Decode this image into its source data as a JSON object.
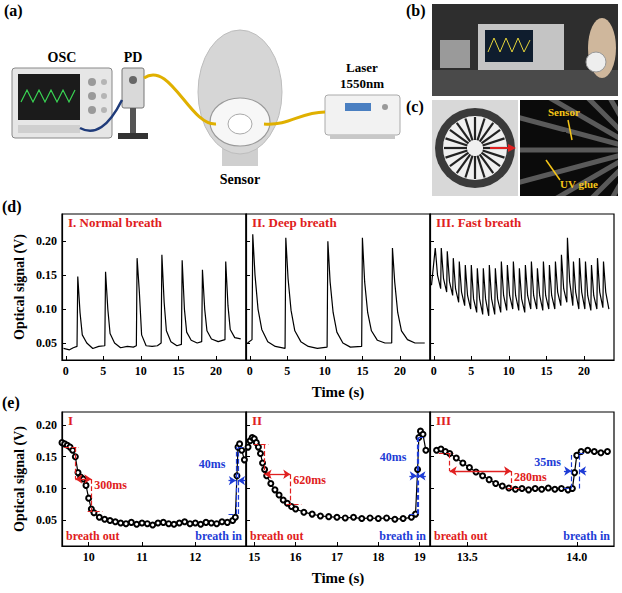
{
  "figure": {
    "a": {
      "label": "(a)",
      "osc": "OSC",
      "pd": "PD",
      "sensor": "Sensor",
      "laser": "Laser",
      "wavelength": "1550nm"
    },
    "b": {
      "label": "(b)"
    },
    "c": {
      "label": "(c)",
      "sensor": "Sensor",
      "glue": "UV glue"
    }
  },
  "chart_data": [
    {
      "type": "line",
      "panel": "(d)",
      "title": "I. Normal breath",
      "ylabel": "Optical signal (V)",
      "color": "#000000",
      "marker": "none",
      "x": [
        -0.3,
        0.5,
        1.0,
        1.5,
        1.6,
        1.9,
        2.2,
        2.8,
        3.6,
        4.4,
        5.2,
        5.3,
        5.6,
        5.9,
        6.5,
        7.3,
        8.2,
        9.0,
        9.4,
        9.5,
        9.8,
        10.1,
        10.7,
        11.5,
        12.2,
        12.7,
        12.8,
        13.1,
        13.4,
        14.0,
        14.8,
        15.4,
        15.5,
        15.8,
        16.1,
        16.7,
        17.5,
        18.1,
        18.2,
        18.5,
        18.8,
        19.4,
        20.3,
        21.2,
        21.3,
        21.6,
        21.9,
        22.5,
        23.3
      ],
      "values": [
        0.042,
        0.04,
        0.043,
        0.045,
        0.148,
        0.095,
        0.062,
        0.05,
        0.042,
        0.045,
        0.046,
        0.155,
        0.1,
        0.064,
        0.05,
        0.043,
        0.045,
        0.044,
        0.046,
        0.175,
        0.125,
        0.062,
        0.046,
        0.045,
        0.046,
        0.05,
        0.18,
        0.11,
        0.068,
        0.052,
        0.046,
        0.048,
        0.172,
        0.1,
        0.066,
        0.054,
        0.05,
        0.052,
        0.158,
        0.1,
        0.068,
        0.056,
        0.052,
        0.055,
        0.17,
        0.105,
        0.07,
        0.058,
        0.056
      ],
      "xlim": [
        -0.5,
        24
      ],
      "xticks": [
        0,
        5,
        10,
        15,
        20
      ],
      "ylim": [
        0.025,
        0.24
      ],
      "yticks": [
        0.05,
        {
          "value": 0.1,
          "label": "0.10"
        },
        0.15,
        {
          "value": 0.2,
          "label": "0.20"
        }
      ]
    },
    {
      "type": "line",
      "title": "II. Deep breath",
      "xlabel": "Time (s)",
      "tick_labels": "x",
      "color": "#000000",
      "marker": "none",
      "x": [
        -0.3,
        0.3,
        0.4,
        0.7,
        1.1,
        1.6,
        2.4,
        3.4,
        4.7,
        4.8,
        5.1,
        5.5,
        6.0,
        6.8,
        7.8,
        9.0,
        10.3,
        10.4,
        10.7,
        11.1,
        11.6,
        12.4,
        13.4,
        14.9,
        15.0,
        15.3,
        15.7,
        16.2,
        17.0,
        18.0,
        18.9,
        19.0,
        19.3,
        19.7,
        20.2,
        21.0,
        22.0,
        23.3
      ],
      "values": [
        0.05,
        0.055,
        0.21,
        0.15,
        0.1,
        0.07,
        0.052,
        0.045,
        0.042,
        0.205,
        0.145,
        0.098,
        0.068,
        0.052,
        0.045,
        0.042,
        0.044,
        0.2,
        0.14,
        0.095,
        0.066,
        0.05,
        0.044,
        0.045,
        0.205,
        0.14,
        0.095,
        0.068,
        0.054,
        0.05,
        0.05,
        0.19,
        0.14,
        0.095,
        0.068,
        0.055,
        0.05,
        0.05
      ],
      "xlim": [
        -0.5,
        24
      ],
      "xticks": [
        0,
        5,
        10,
        15,
        20
      ],
      "ylim": [
        0.025,
        0.24
      ],
      "yticks": [
        0.05,
        {
          "value": 0.1,
          "label": "0.10"
        },
        0.15,
        {
          "value": 0.2,
          "label": "0.20"
        }
      ]
    },
    {
      "type": "line",
      "title": "III. Fast breath",
      "tick_labels": "x",
      "color": "#000000",
      "marker": "none",
      "x": [
        -0.3,
        0.2,
        0.5,
        0.92,
        1.0,
        1.3,
        1.72,
        1.8,
        2.1,
        2.52,
        2.6,
        2.9,
        3.32,
        3.4,
        3.7,
        4.12,
        4.2,
        4.5,
        4.92,
        5.0,
        5.3,
        5.72,
        5.8,
        6.1,
        6.52,
        6.6,
        6.9,
        7.32,
        7.4,
        7.7,
        8.12,
        8.2,
        8.5,
        8.92,
        9.0,
        9.3,
        9.72,
        9.8,
        10.1,
        10.52,
        10.6,
        10.9,
        11.32,
        11.4,
        11.7,
        12.12,
        12.2,
        12.5,
        12.92,
        13.0,
        13.3,
        13.72,
        13.8,
        14.1,
        14.52,
        14.6,
        14.9,
        15.32,
        15.4,
        15.7,
        16.12,
        16.2,
        16.5,
        16.92,
        17.0,
        17.3,
        17.72,
        17.8,
        18.1,
        18.52,
        18.6,
        18.9,
        19.32,
        19.4,
        19.7,
        20.12,
        20.2,
        20.5,
        20.92,
        21.0,
        21.3,
        21.72,
        21.8,
        22.1,
        22.52,
        22.6,
        22.9,
        23.32
      ],
      "values": [
        0.135,
        0.19,
        0.15,
        0.13,
        0.19,
        0.145,
        0.125,
        0.185,
        0.14,
        0.12,
        0.175,
        0.13,
        0.11,
        0.17,
        0.125,
        0.105,
        0.165,
        0.12,
        0.1,
        0.165,
        0.115,
        0.095,
        0.16,
        0.115,
        0.092,
        0.16,
        0.115,
        0.09,
        0.165,
        0.115,
        0.092,
        0.16,
        0.115,
        0.095,
        0.17,
        0.12,
        0.098,
        0.165,
        0.12,
        0.1,
        0.17,
        0.12,
        0.098,
        0.16,
        0.115,
        0.095,
        0.165,
        0.12,
        0.1,
        0.17,
        0.12,
        0.1,
        0.16,
        0.12,
        0.098,
        0.17,
        0.12,
        0.1,
        0.165,
        0.12,
        0.1,
        0.17,
        0.125,
        0.105,
        0.18,
        0.13,
        0.11,
        0.205,
        0.14,
        0.105,
        0.17,
        0.125,
        0.1,
        0.175,
        0.125,
        0.1,
        0.17,
        0.12,
        0.098,
        0.165,
        0.12,
        0.1,
        0.175,
        0.125,
        0.102,
        0.17,
        0.125,
        0.1
      ],
      "xlim": [
        -0.5,
        24
      ],
      "xticks": [
        0,
        5,
        10,
        15,
        20
      ],
      "ylim": [
        0.025,
        0.24
      ],
      "yticks": [
        0.05,
        {
          "value": 0.1,
          "label": "0.10"
        },
        0.15,
        {
          "value": 0.2,
          "label": "0.20"
        }
      ]
    },
    {
      "type": "line",
      "panel": "(e)",
      "title": "I",
      "ylabel": "Optical signal (V)",
      "color": "#000000",
      "marker": "emptyCircle",
      "x": [
        9.5,
        9.55,
        9.6,
        9.65,
        9.7,
        9.75,
        9.8,
        9.85,
        9.9,
        9.95,
        10.0,
        10.05,
        10.1,
        10.2,
        10.3,
        10.4,
        10.5,
        10.6,
        10.7,
        10.8,
        10.9,
        11.0,
        11.1,
        11.2,
        11.3,
        11.4,
        11.5,
        11.6,
        11.7,
        11.8,
        11.9,
        12.0,
        12.1,
        12.2,
        12.3,
        12.4,
        12.5,
        12.6,
        12.7,
        12.75,
        12.78,
        12.8,
        12.83,
        12.87,
        12.92
      ],
      "values": [
        0.172,
        0.17,
        0.168,
        0.165,
        0.16,
        0.15,
        0.125,
        0.118,
        0.115,
        0.105,
        0.085,
        0.068,
        0.062,
        0.055,
        0.052,
        0.05,
        0.048,
        0.046,
        0.045,
        0.047,
        0.044,
        0.046,
        0.045,
        0.043,
        0.046,
        0.047,
        0.045,
        0.044,
        0.046,
        0.048,
        0.045,
        0.046,
        0.044,
        0.047,
        0.046,
        0.045,
        0.048,
        0.047,
        0.05,
        0.055,
        0.12,
        0.165,
        0.17,
        0.16,
        0.145
      ],
      "xlim": [
        9.5,
        12.95
      ],
      "xticks": [
        10,
        11,
        12
      ],
      "ylim": [
        0.01,
        0.22
      ],
      "yticks": [
        0.05,
        {
          "value": 0.1,
          "label": "0.10"
        },
        0.15,
        {
          "value": 0.2,
          "label": "0.20"
        }
      ],
      "intervals": [
        {
          "label": "300ms",
          "x": [
            9.75,
            10.05
          ],
          "y": [
            0.165,
            0.065
          ],
          "color": "#e02020"
        },
        {
          "label": "40ms",
          "x": [
            12.76,
            12.8
          ],
          "y": [
            0.06,
            0.165
          ],
          "color": "#1e3cd6"
        }
      ],
      "annotations": [
        {
          "text": "breath out",
          "color": "#e02020"
        },
        {
          "text": "breath in",
          "color": "#1e3cd6"
        }
      ]
    },
    {
      "type": "line",
      "title": "II",
      "xlabel": "Time (s)",
      "tick_labels": "x",
      "color": "#000000",
      "marker": "emptyCircle",
      "x": [
        14.85,
        14.9,
        14.95,
        15.0,
        15.05,
        15.1,
        15.15,
        15.2,
        15.25,
        15.3,
        15.4,
        15.5,
        15.6,
        15.7,
        15.8,
        15.9,
        16.0,
        16.2,
        16.4,
        16.6,
        16.8,
        17.0,
        17.2,
        17.4,
        17.6,
        17.8,
        18.0,
        18.2,
        18.4,
        18.6,
        18.8,
        18.9,
        18.95,
        18.98,
        19.02,
        19.08,
        19.15
      ],
      "values": [
        0.165,
        0.175,
        0.18,
        0.178,
        0.172,
        0.165,
        0.155,
        0.14,
        0.13,
        0.12,
        0.108,
        0.098,
        0.09,
        0.082,
        0.077,
        0.072,
        0.068,
        0.063,
        0.06,
        0.057,
        0.056,
        0.055,
        0.054,
        0.055,
        0.053,
        0.054,
        0.053,
        0.054,
        0.052,
        0.053,
        0.055,
        0.06,
        0.13,
        0.18,
        0.19,
        0.185,
        0.16
      ],
      "xlim": [
        14.8,
        19.25
      ],
      "xticks": [
        15,
        16,
        17,
        18,
        19
      ],
      "ylim": [
        0.01,
        0.22
      ],
      "yticks": [
        0.05,
        {
          "value": 0.1,
          "label": "0.10"
        },
        0.15,
        {
          "value": 0.2,
          "label": "0.20"
        }
      ],
      "intervals": [
        {
          "label": "620ms",
          "x": [
            15.25,
            15.87
          ],
          "y": [
            0.17,
            0.075
          ],
          "color": "#e02020"
        },
        {
          "label": "40ms",
          "x": [
            18.93,
            18.97
          ],
          "y": [
            0.06,
            0.18
          ],
          "color": "#1e3cd6"
        }
      ],
      "annotations": [
        {
          "text": "breath out",
          "color": "#e02020"
        },
        {
          "text": "breath in",
          "color": "#1e3cd6"
        }
      ]
    },
    {
      "type": "line",
      "title": "III",
      "tick_labels": "x",
      "color": "#000000",
      "marker": "emptyCircle",
      "x": [
        13.36,
        13.38,
        13.4,
        13.42,
        13.45,
        13.48,
        13.51,
        13.54,
        13.57,
        13.6,
        13.63,
        13.66,
        13.69,
        13.72,
        13.75,
        13.78,
        13.81,
        13.84,
        13.87,
        13.9,
        13.93,
        13.96,
        13.98,
        13.99,
        14.0,
        14.02,
        14.05,
        14.08,
        14.11,
        14.14
      ],
      "values": [
        0.16,
        0.162,
        0.158,
        0.155,
        0.148,
        0.14,
        0.133,
        0.126,
        0.12,
        0.114,
        0.108,
        0.104,
        0.101,
        0.099,
        0.1,
        0.098,
        0.1,
        0.099,
        0.101,
        0.099,
        0.1,
        0.098,
        0.1,
        0.125,
        0.152,
        0.158,
        0.16,
        0.158,
        0.156,
        0.158
      ],
      "xlim": [
        13.33,
        14.17
      ],
      "xticks": [
        13.5,
        {
          "value": 14.0,
          "label": "14.0"
        }
      ],
      "ylim": [
        0.01,
        0.22
      ],
      "yticks": [
        0.05,
        {
          "value": 0.1,
          "label": "0.10"
        },
        0.15,
        {
          "value": 0.2,
          "label": "0.20"
        }
      ],
      "intervals": [
        {
          "label": "280ms",
          "x": [
            13.42,
            13.7
          ],
          "y": [
            0.155,
            0.1
          ],
          "color": "#e02020"
        },
        {
          "label": "35ms",
          "x": [
            13.975,
            14.01
          ],
          "y": [
            0.1,
            0.155
          ],
          "color": "#1e3cd6"
        }
      ],
      "annotations": [
        {
          "text": "breath out",
          "color": "#e02020"
        },
        {
          "text": "breath in",
          "color": "#1e3cd6"
        }
      ]
    }
  ]
}
